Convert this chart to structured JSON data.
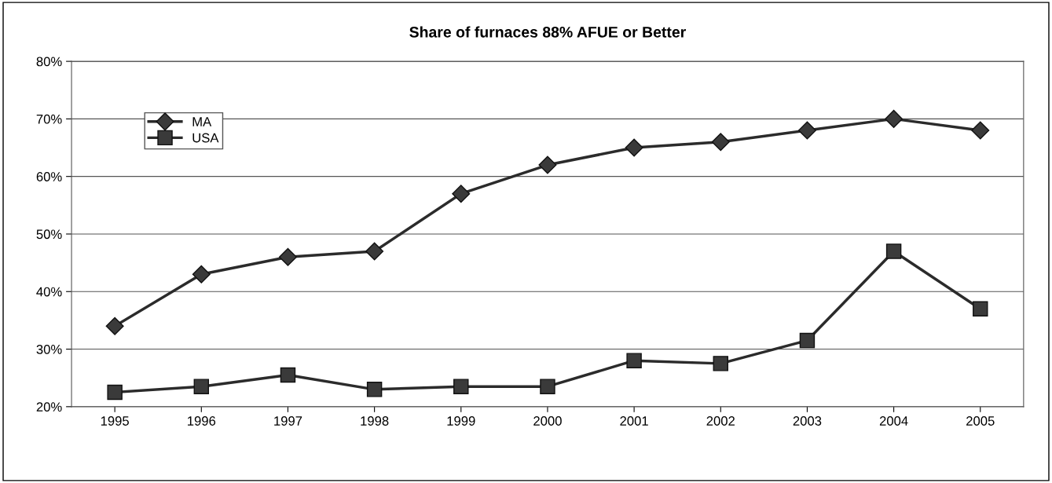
{
  "chart_data": {
    "type": "line",
    "title": "Share of furnaces 88% AFUE or Better",
    "categories": [
      "1995",
      "1996",
      "1997",
      "1998",
      "1999",
      "2000",
      "2001",
      "2002",
      "2003",
      "2004",
      "2005"
    ],
    "series": [
      {
        "name": "MA",
        "color": "#2b2b2b",
        "marker": "diamond",
        "values": [
          34,
          43,
          46,
          47,
          57,
          62,
          65,
          66,
          68,
          70,
          68
        ]
      },
      {
        "name": "USA",
        "color": "#2b2b2b",
        "marker": "square",
        "values": [
          22.5,
          23.5,
          25.5,
          23,
          23.5,
          23.5,
          28,
          27.5,
          31.5,
          47,
          37
        ]
      }
    ],
    "ylim": [
      20,
      80
    ],
    "yticks": [
      {
        "value": 20,
        "label": "20%"
      },
      {
        "value": 30,
        "label": "30%"
      },
      {
        "value": 40,
        "label": "40%"
      },
      {
        "value": 50,
        "label": "50%"
      },
      {
        "value": 60,
        "label": "60%"
      },
      {
        "value": 70,
        "label": "70%"
      },
      {
        "value": 80,
        "label": "80%"
      }
    ],
    "grid": "y",
    "legend": "top left",
    "line_style": "solid"
  }
}
